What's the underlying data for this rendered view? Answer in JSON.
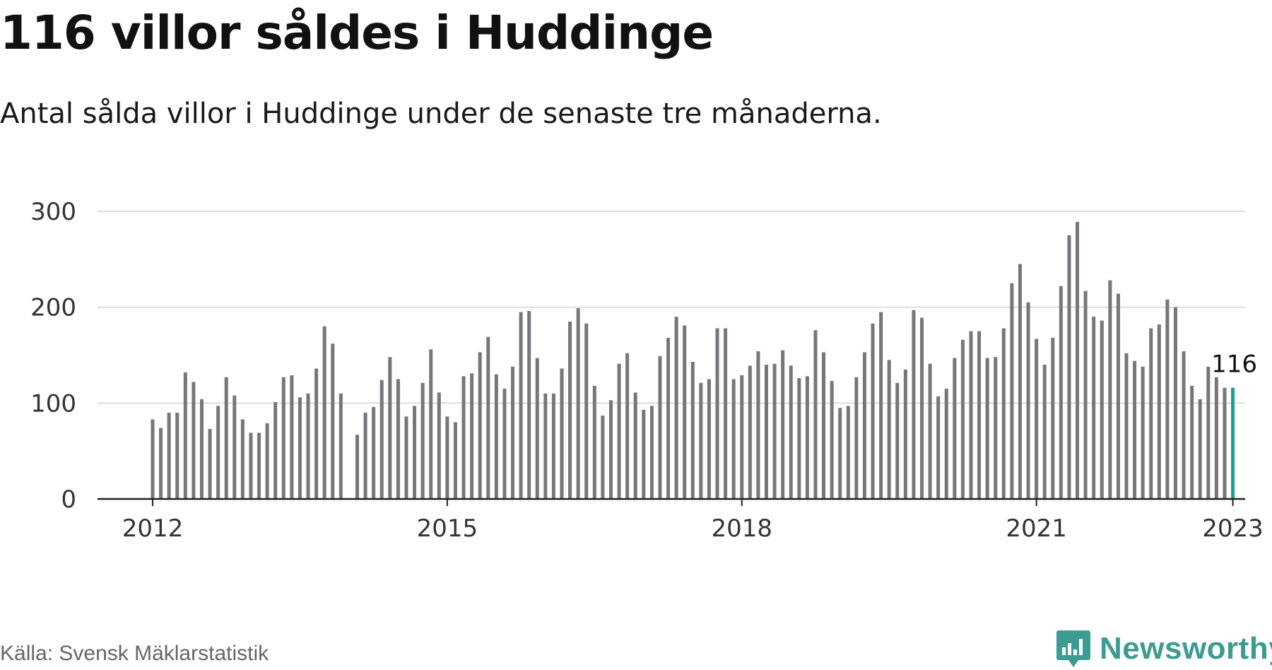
{
  "title": "116 villor såldes i Huddinge",
  "subtitle": "Antal sålda villor i Huddinge under de senaste tre månaderna.",
  "source": "Källa: Svensk Mäklarstatistik",
  "brand": "Newsworthy",
  "colors": {
    "bar": "#76767b",
    "highlight": "#17a398",
    "grid": "#dddddd",
    "axis": "#222222",
    "brand": "#3d9c92"
  },
  "chart_data": {
    "type": "bar",
    "x_start": "2012-01",
    "x_end": "2023-01",
    "interval": "month",
    "gap": "2014-05",
    "values": [
      83,
      74,
      90,
      90,
      132,
      122,
      104,
      73,
      97,
      127,
      108,
      83,
      69,
      69,
      79,
      101,
      127,
      129,
      106,
      110,
      136,
      180,
      162,
      110,
      null,
      67,
      90,
      96,
      124,
      148,
      125,
      86,
      97,
      121,
      156,
      111,
      86,
      80,
      128,
      131,
      153,
      169,
      130,
      115,
      138,
      195,
      196,
      147,
      110,
      110,
      136,
      185,
      199,
      183,
      118,
      87,
      103,
      141,
      152,
      111,
      93,
      97,
      149,
      168,
      190,
      181,
      143,
      121,
      125,
      178,
      178,
      125,
      129,
      139,
      154,
      140,
      141,
      155,
      139,
      126,
      128,
      176,
      153,
      123,
      95,
      97,
      127,
      153,
      183,
      195,
      145,
      121,
      135,
      197,
      189,
      141,
      107,
      115,
      147,
      166,
      175,
      175,
      147,
      148,
      178,
      225,
      245,
      205,
      167,
      140,
      168,
      222,
      275,
      289,
      217,
      190,
      186,
      228,
      214,
      152,
      144,
      138,
      178,
      182,
      208,
      200,
      154,
      118,
      104,
      138,
      127,
      116,
      116
    ],
    "highlight_last": true,
    "annotation": "116",
    "ylim": [
      0,
      300
    ],
    "yticks": [
      "0",
      "100",
      "200",
      "300"
    ],
    "xticks": [
      "2012",
      "2015",
      "2018",
      "2021",
      "2023"
    ],
    "grid": true
  }
}
